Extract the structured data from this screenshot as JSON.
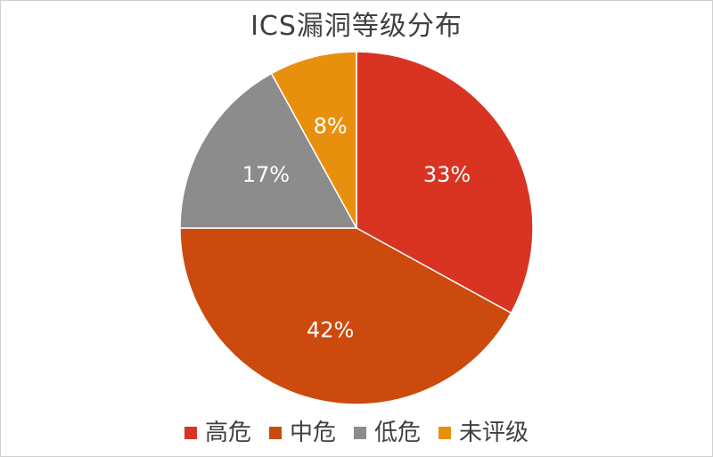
{
  "chart_data": {
    "type": "pie",
    "title": "ICS漏洞等级分布",
    "legend_position": "bottom",
    "slices": [
      {
        "name": "高危",
        "value": 33,
        "label": "33%",
        "color": "#d93322"
      },
      {
        "name": "中危",
        "value": 42,
        "label": "42%",
        "color": "#cc4a0e"
      },
      {
        "name": "低危",
        "value": 17,
        "label": "17%",
        "color": "#8c8c8c"
      },
      {
        "name": "未评级",
        "value": 8,
        "label": "8%",
        "color": "#e8900e"
      }
    ]
  }
}
